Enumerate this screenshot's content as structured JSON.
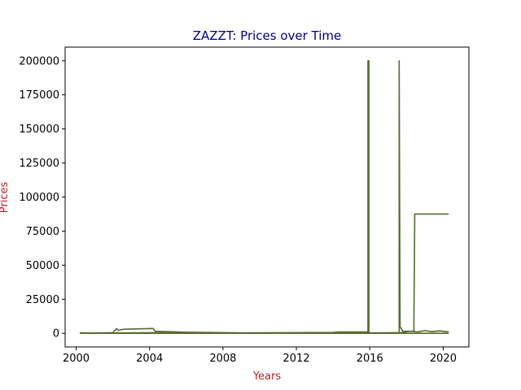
{
  "chart_data": {
    "type": "line",
    "title": "ZAZZT: Prices over Time",
    "xlabel": "Years",
    "ylabel": "Prices",
    "title_color": "#000080",
    "label_color": "#b22222",
    "line_color": "#556b2f",
    "xlim": [
      1999.4,
      2021.4
    ],
    "ylim": [
      -10000,
      210000
    ],
    "x_ticks": [
      2000,
      2004,
      2008,
      2012,
      2016,
      2020
    ],
    "y_ticks": [
      0,
      25000,
      50000,
      75000,
      100000,
      125000,
      150000,
      175000,
      200000
    ],
    "grid": false,
    "legend": "none",
    "series": [
      {
        "x": [
          2000.2,
          2001.0,
          2002.0,
          2002.2,
          2002.3,
          2002.4,
          2002.6,
          2004.2,
          2004.3,
          2006.0,
          2008.0,
          2009.0,
          2010.0,
          2012.0,
          2014.0,
          2014.3,
          2015.9,
          2015.9,
          2015.95,
          2015.95,
          2017.6,
          2017.6,
          2017.65,
          2017.7,
          2017.8,
          2018.4,
          2018.45,
          2020.3
        ],
        "y": [
          300,
          200,
          500,
          3500,
          2000,
          2500,
          3000,
          3500,
          1500,
          800,
          500,
          300,
          400,
          500,
          600,
          1000,
          1000,
          200000,
          200000,
          300,
          300,
          200000,
          4000,
          4000,
          1500,
          1500,
          87500,
          87500
        ]
      },
      {
        "x": [
          2000.2,
          2002.0,
          2004.0,
          2006.0,
          2008.0,
          2010.0,
          2012.0,
          2014.0,
          2016.0,
          2017.6,
          2017.8,
          2018.0,
          2018.4,
          2018.8,
          2019.2,
          2019.6,
          2020.0,
          2020.3
        ],
        "y": [
          0,
          0,
          0,
          0,
          0,
          0,
          0,
          0,
          0,
          0,
          0,
          0,
          0,
          0,
          0,
          0,
          0,
          0
        ]
      },
      {
        "x": [
          2000.2,
          2004.3,
          2006.0,
          2008.8,
          2012.0,
          2016.0,
          2017.7,
          2018.2,
          2018.6,
          2019.0,
          2019.4,
          2019.8,
          2020.3
        ],
        "y": [
          0,
          500,
          100,
          0,
          0,
          200,
          500,
          1500,
          1000,
          2000,
          1200,
          1800,
          1000
        ]
      }
    ]
  }
}
